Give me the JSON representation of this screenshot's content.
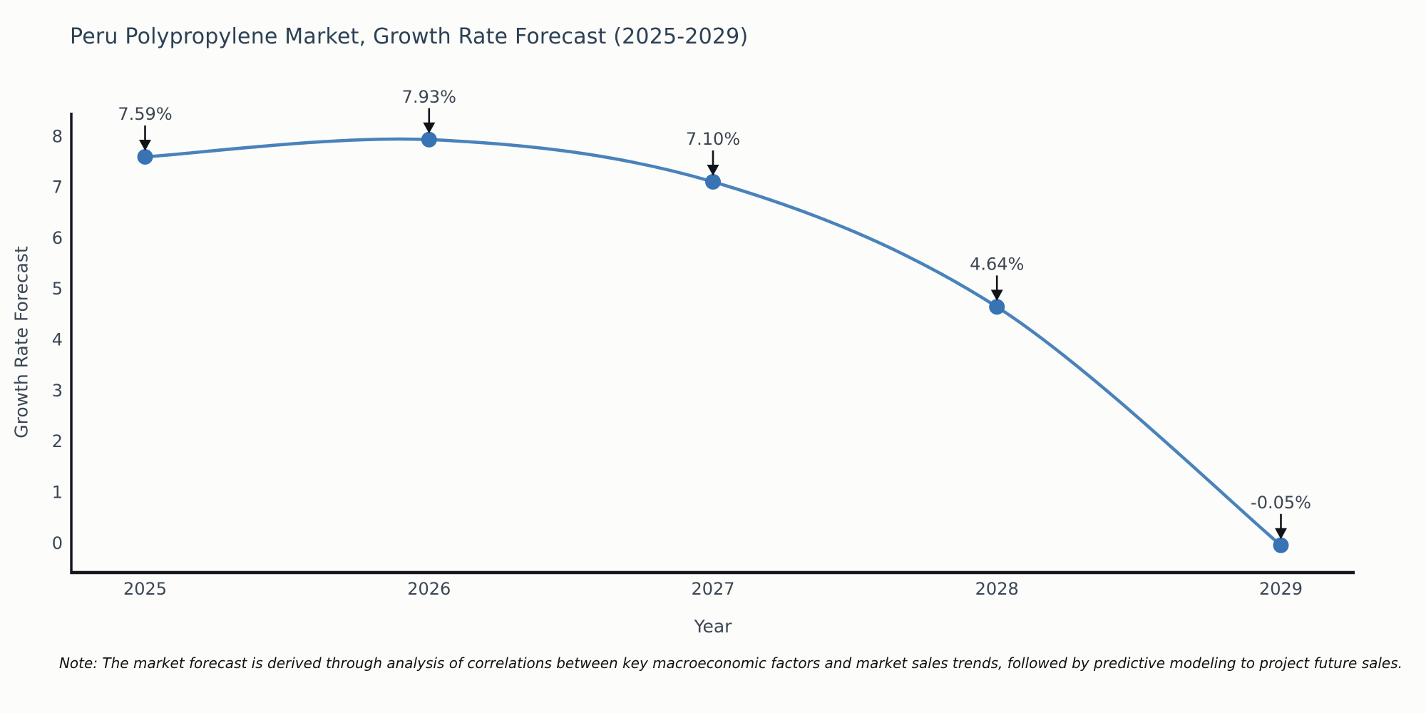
{
  "figure": {
    "note": "Note: The market forecast is derived through analysis of correlations between key macroeconomic factors and market sales trends, followed by predictive modeling to project future sales."
  },
  "chart_data": {
    "type": "line",
    "title": "Peru Polypropylene Market, Growth Rate Forecast (2025-2029)",
    "xlabel": "Year",
    "ylabel": "Growth Rate Forecast",
    "x": [
      2025,
      2026,
      2027,
      2028,
      2029
    ],
    "series": [
      {
        "name": "Growth Rate Forecast",
        "values": [
          7.59,
          7.93,
          7.1,
          4.64,
          -0.05
        ]
      }
    ],
    "point_labels": [
      "7.59%",
      "7.93%",
      "7.10%",
      "4.64%",
      "-0.05%"
    ],
    "xtick_labels": [
      "2025",
      "2026",
      "2027",
      "2028",
      "2029"
    ],
    "yticks": [
      0,
      1,
      2,
      3,
      4,
      5,
      6,
      7,
      8
    ],
    "xlim": [
      2024.74,
      2029.26
    ],
    "ylim": [
      -0.585,
      8.46
    ],
    "grid": false,
    "legend": "none",
    "line_smoothing": "spline",
    "colors": {
      "line": "#4a82ba",
      "marker": "#3873b4",
      "arrow": "#111417",
      "spine": "#15191e",
      "tick_label": "#3b4754",
      "annotation_text": "#3c4650",
      "title": "#2d4155"
    }
  }
}
